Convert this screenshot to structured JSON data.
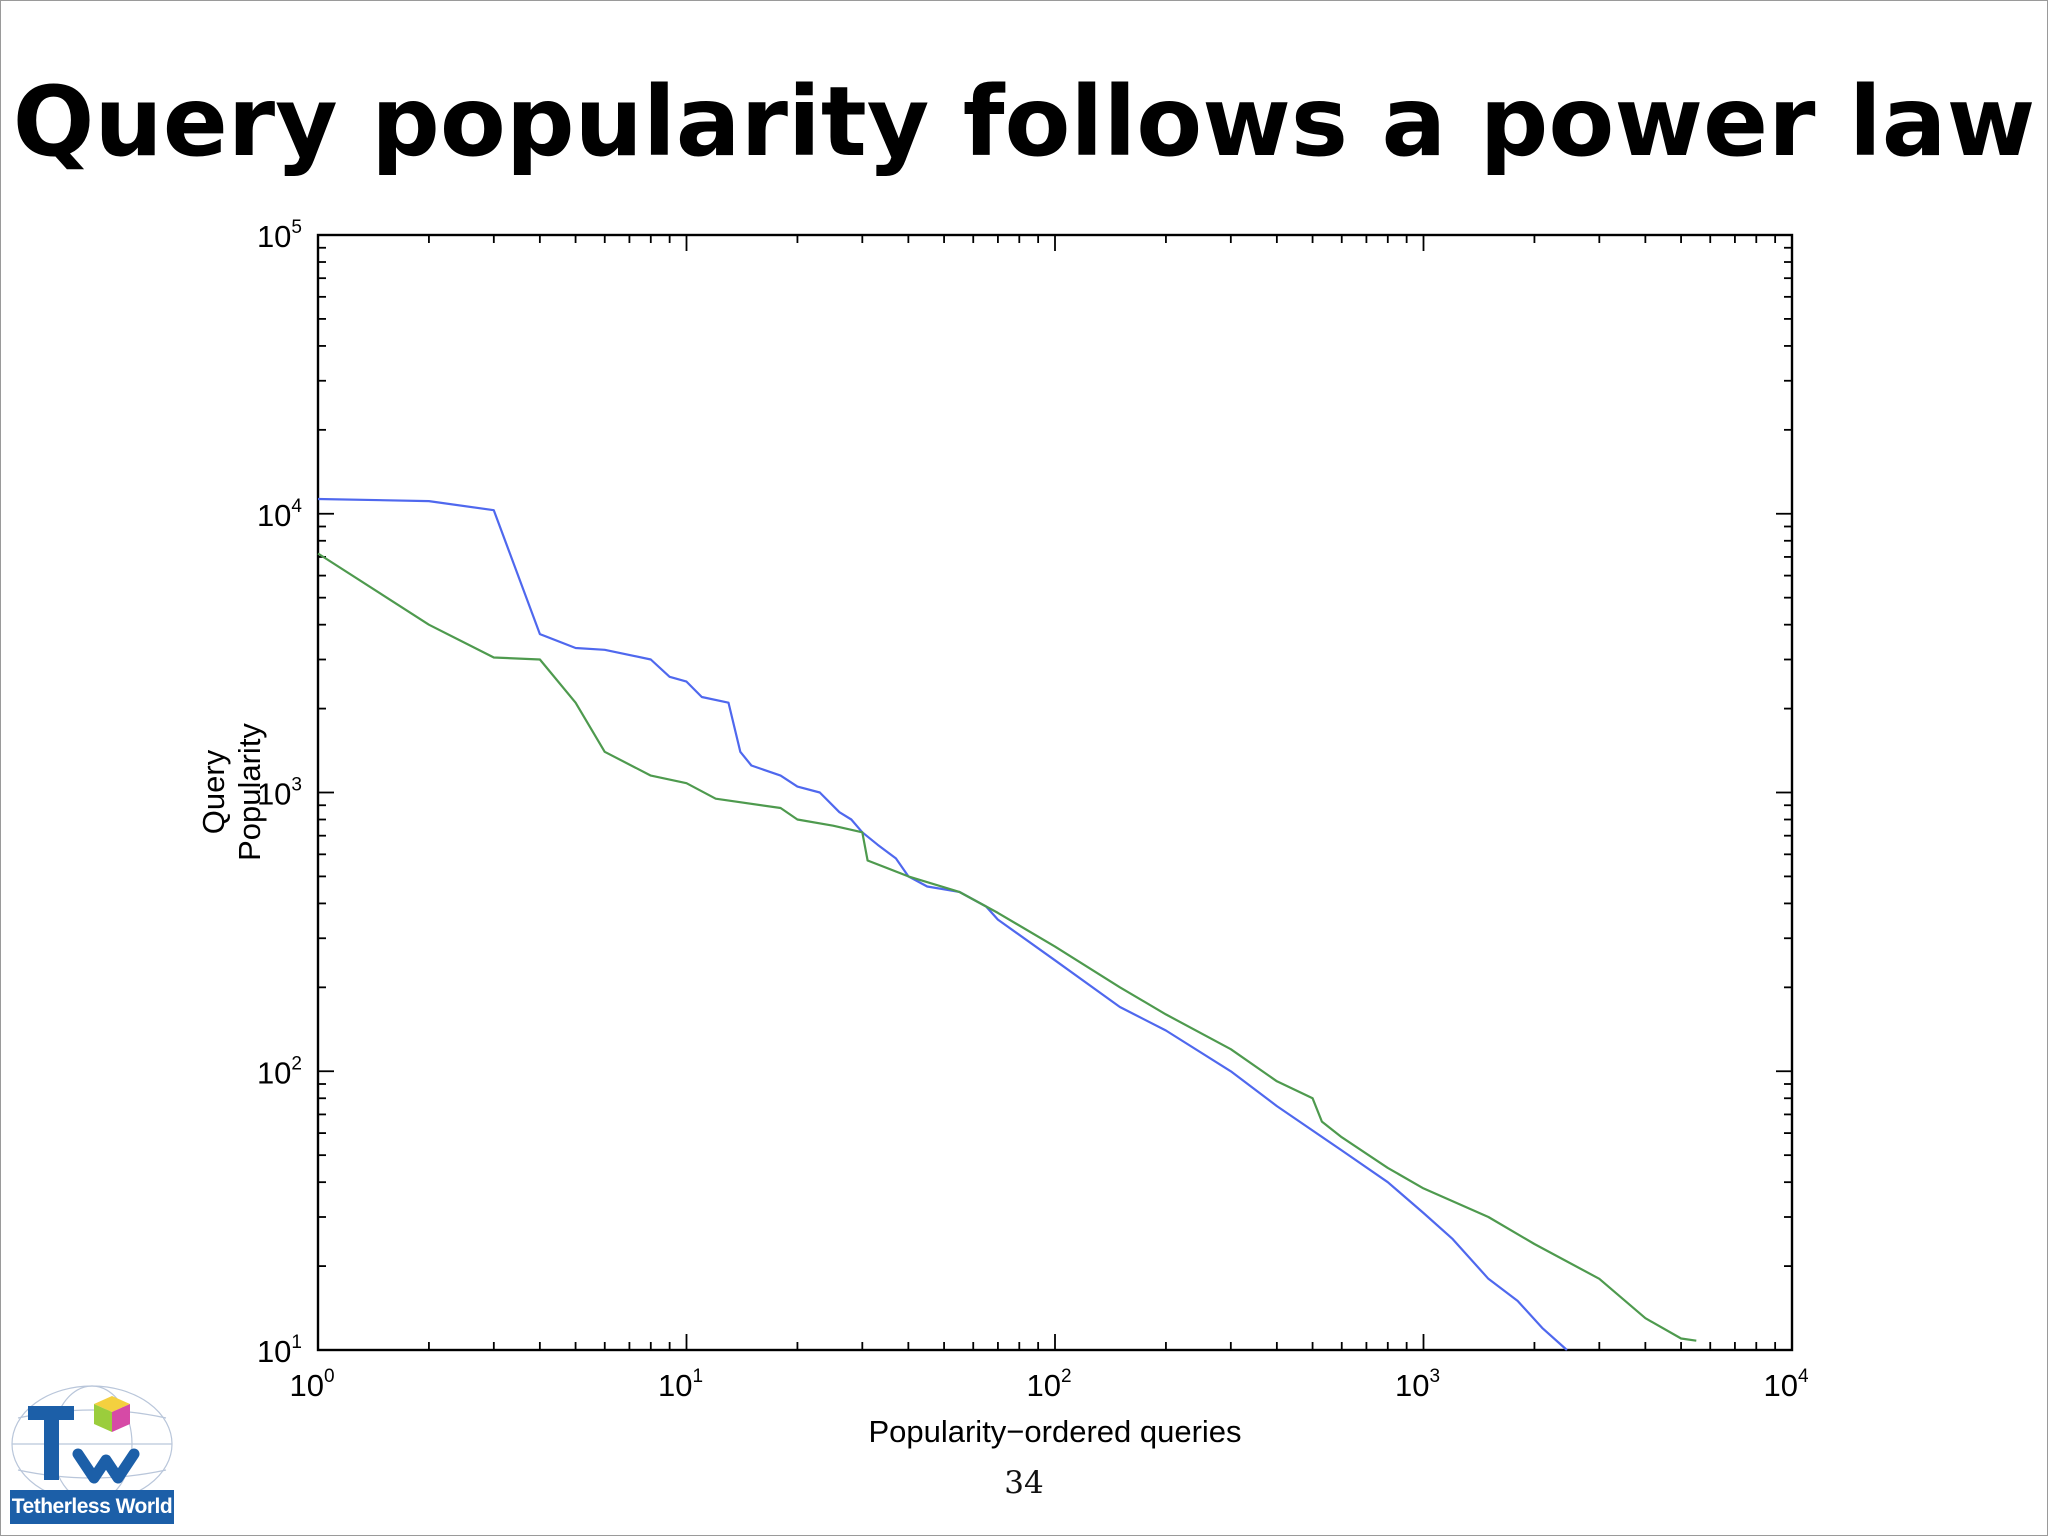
{
  "slide": {
    "title": "Query popularity follows a power law",
    "page_number": "34"
  },
  "logo": {
    "name": "Tetherless World",
    "caption": "Tetherless World"
  },
  "colors": {
    "series_blue": "#4f68ee",
    "series_green": "#4e9a4e",
    "logo_blue": "#1c5fa8"
  },
  "chart_data": {
    "type": "line",
    "title": "",
    "xlabel": "Popularity−ordered queries",
    "ylabel_lines": [
      "Query",
      "Popularity"
    ],
    "x_scale": "log",
    "y_scale": "log",
    "xlim": [
      1,
      10000
    ],
    "ylim": [
      10,
      100000
    ],
    "grid": false,
    "legend": "none",
    "x_ticks": [
      {
        "base": "10",
        "exp": "0",
        "value": 1
      },
      {
        "base": "10",
        "exp": "1",
        "value": 10
      },
      {
        "base": "10",
        "exp": "2",
        "value": 100
      },
      {
        "base": "10",
        "exp": "3",
        "value": 1000
      },
      {
        "base": "10",
        "exp": "4",
        "value": 10000
      }
    ],
    "y_ticks": [
      {
        "base": "10",
        "exp": "1",
        "value": 10
      },
      {
        "base": "10",
        "exp": "2",
        "value": 100
      },
      {
        "base": "10",
        "exp": "3",
        "value": 1000
      },
      {
        "base": "10",
        "exp": "4",
        "value": 10000
      },
      {
        "base": "10",
        "exp": "5",
        "value": 100000
      }
    ],
    "series": [
      {
        "color": "#4f68ee",
        "points": [
          [
            1,
            11300
          ],
          [
            2,
            11100
          ],
          [
            3,
            10300
          ],
          [
            4,
            3700
          ],
          [
            5,
            3300
          ],
          [
            6,
            3250
          ],
          [
            8,
            3000
          ],
          [
            9,
            2600
          ],
          [
            10,
            2500
          ],
          [
            11,
            2200
          ],
          [
            13,
            2100
          ],
          [
            14,
            1400
          ],
          [
            15,
            1250
          ],
          [
            18,
            1150
          ],
          [
            20,
            1050
          ],
          [
            23,
            1000
          ],
          [
            26,
            850
          ],
          [
            28,
            800
          ],
          [
            30,
            720
          ],
          [
            33,
            650
          ],
          [
            37,
            580
          ],
          [
            40,
            500
          ],
          [
            45,
            460
          ],
          [
            55,
            440
          ],
          [
            65,
            390
          ],
          [
            70,
            350
          ],
          [
            100,
            250
          ],
          [
            150,
            170
          ],
          [
            200,
            140
          ],
          [
            300,
            100
          ],
          [
            400,
            75
          ],
          [
            600,
            52
          ],
          [
            800,
            40
          ],
          [
            1000,
            31
          ],
          [
            1200,
            25
          ],
          [
            1500,
            18
          ],
          [
            1800,
            15
          ],
          [
            2100,
            12
          ],
          [
            2450,
            10
          ]
        ]
      },
      {
        "color": "#4e9a4e",
        "points": [
          [
            1,
            7200
          ],
          [
            2,
            4000
          ],
          [
            3,
            3050
          ],
          [
            4,
            3000
          ],
          [
            5,
            2100
          ],
          [
            6,
            1400
          ],
          [
            8,
            1150
          ],
          [
            10,
            1080
          ],
          [
            12,
            950
          ],
          [
            18,
            880
          ],
          [
            20,
            800
          ],
          [
            25,
            760
          ],
          [
            30,
            720
          ],
          [
            31,
            570
          ],
          [
            40,
            500
          ],
          [
            55,
            440
          ],
          [
            70,
            370
          ],
          [
            100,
            280
          ],
          [
            150,
            200
          ],
          [
            200,
            160
          ],
          [
            300,
            120
          ],
          [
            400,
            92
          ],
          [
            500,
            80
          ],
          [
            530,
            66
          ],
          [
            600,
            58
          ],
          [
            800,
            45
          ],
          [
            1000,
            38
          ],
          [
            1500,
            30
          ],
          [
            2000,
            24
          ],
          [
            3000,
            18
          ],
          [
            4000,
            13
          ],
          [
            5000,
            11
          ],
          [
            5500,
            10.8
          ]
        ]
      }
    ]
  }
}
